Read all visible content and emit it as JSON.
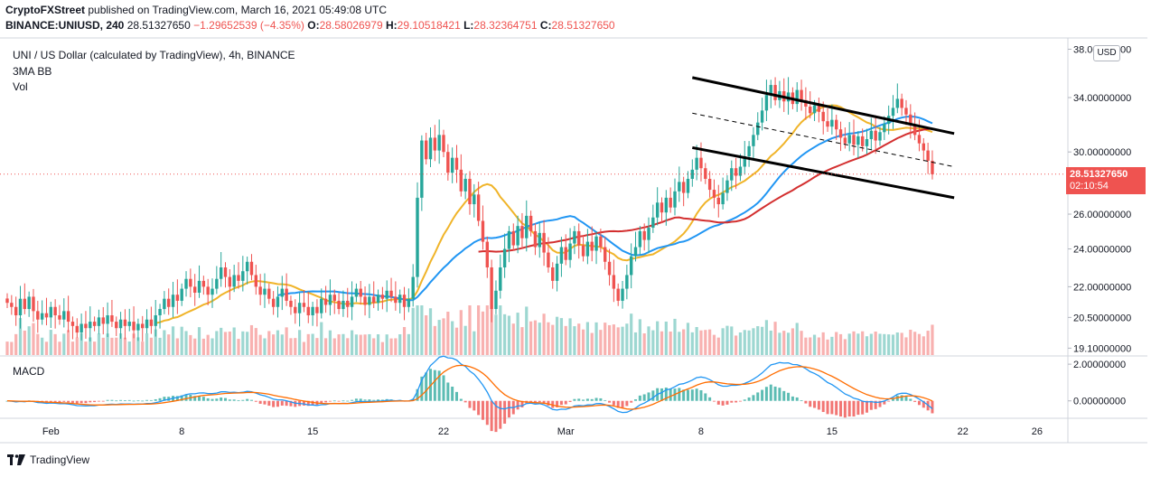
{
  "header": {
    "line1_publisher": "CryptoFXStreet",
    "line1_rest": " published on TradingView.com, March 16, 2021 05:49:08 UTC",
    "symbol_info": "BINANCE:UNIUSD, 240",
    "last_price": "28.51327650",
    "change": "−1.29652539 (−4.35%)",
    "o_label": "O:",
    "o_value": "28.58026979",
    "h_label": "H:",
    "h_value": "29.10518421",
    "l_label": "L:",
    "l_value": "28.32364751",
    "c_label": "C:",
    "c_value": "28.51327650"
  },
  "legend": {
    "title": "UNI / US Dollar (calculated by TradingView), 4h, BINANCE",
    "indicator": "3MA BB",
    "volume": "Vol",
    "macd": "MACD"
  },
  "currency_badge": "USD",
  "price_tag": {
    "price": "28.51327650",
    "countdown": "02:10:54"
  },
  "brand": "TradingView",
  "colors": {
    "up": "#26a69a",
    "down": "#ef5350",
    "ma50": "#f0b429",
    "ma100": "#2196f3",
    "ma200": "#d32f2f",
    "channel": "#000000",
    "macd": "#2196f3",
    "signal": "#ff6d00"
  },
  "chart_data": [
    {
      "type": "candlestick",
      "title": "UNI / US Dollar (calculated by TradingView), 4h, BINANCE",
      "x_tick_labels": [
        "Feb",
        "8",
        "15",
        "22",
        "Mar",
        "8",
        "15",
        "22",
        "26"
      ],
      "x_tick_index": [
        10,
        40,
        70,
        100,
        128,
        159,
        189,
        219,
        236
      ],
      "y_tick_labels": [
        "38.00000000",
        "34.00000000",
        "30.00000000",
        "26.00000000",
        "24.00000000",
        "22.00000000",
        "20.50000000",
        "19.10000000"
      ],
      "y_tick_values": [
        38,
        34,
        30,
        26,
        24,
        22,
        20.5,
        19.1
      ],
      "ylim": [
        18.8,
        39
      ],
      "scale": "log",
      "series": [
        {
          "name": "price",
          "kind": "candles",
          "close": [
            21.2,
            21.0,
            20.6,
            21.4,
            20.9,
            21.5,
            20.8,
            20.4,
            20.7,
            20.5,
            21.0,
            20.6,
            20.4,
            20.8,
            20.3,
            20.1,
            19.8,
            20.2,
            20.0,
            20.3,
            20.1,
            20.5,
            20.2,
            20.6,
            20.3,
            20.0,
            20.4,
            20.1,
            20.3,
            19.9,
            20.2,
            20.0,
            20.4,
            20.1,
            20.6,
            20.9,
            21.4,
            21.0,
            21.6,
            21.3,
            21.9,
            22.4,
            22.0,
            21.7,
            22.3,
            22.0,
            21.6,
            21.9,
            22.4,
            23.0,
            22.5,
            22.0,
            22.6,
            22.3,
            22.8,
            23.3,
            22.6,
            22.0,
            21.6,
            21.9,
            21.4,
            21.0,
            21.5,
            21.9,
            21.3,
            21.0,
            20.7,
            21.2,
            21.0,
            20.6,
            21.0,
            20.7,
            21.4,
            21.1,
            21.6,
            21.3,
            20.9,
            21.3,
            21.0,
            21.5,
            21.9,
            21.5,
            21.1,
            21.5,
            21.2,
            21.6,
            21.4,
            21.8,
            21.5,
            21.2,
            21.6,
            21.0,
            21.4,
            22.5,
            27.0,
            30.8,
            29.5,
            31.0,
            30.1,
            31.2,
            30.0,
            28.6,
            29.6,
            28.8,
            27.4,
            28.2,
            26.6,
            27.2,
            25.6,
            24.4,
            23.0,
            20.9,
            21.8,
            23.0,
            24.0,
            25.0,
            24.2,
            25.3,
            24.6,
            25.9,
            25.0,
            24.1,
            24.9,
            23.8,
            23.0,
            22.3,
            23.2,
            24.1,
            23.4,
            24.3,
            25.0,
            24.2,
            23.6,
            24.4,
            23.9,
            24.7,
            24.1,
            23.3,
            22.6,
            21.9,
            21.3,
            21.9,
            22.6,
            23.6,
            24.1,
            25.0,
            24.5,
            25.2,
            25.8,
            26.7,
            26.1,
            27.0,
            26.4,
            27.4,
            28.0,
            27.3,
            28.2,
            28.8,
            29.6,
            28.9,
            28.2,
            27.5,
            27.0,
            26.6,
            27.3,
            28.1,
            28.9,
            28.4,
            29.0,
            29.7,
            30.4,
            31.2,
            32.1,
            33.0,
            34.2,
            35.0,
            33.8,
            34.5,
            33.7,
            34.4,
            33.5,
            34.6,
            33.8,
            33.3,
            32.8,
            33.4,
            32.9,
            32.2,
            31.8,
            32.3,
            31.6,
            31.0,
            30.6,
            31.2,
            30.5,
            31.1,
            30.4,
            30.9,
            31.5,
            30.8,
            31.4,
            32.0,
            32.6,
            33.2,
            33.9,
            33.2,
            32.7,
            31.9,
            31.2,
            30.6,
            30.1,
            29.4,
            28.5
          ],
          "open_equals_prev_close": true
        }
      ],
      "overlays": [
        {
          "name": "MA50",
          "color": "#f0b429"
        },
        {
          "name": "MA100",
          "color": "#2196f3"
        },
        {
          "name": "MA200",
          "color": "#d32f2f"
        }
      ],
      "channel": {
        "upper": [
          [
            157,
            35.6
          ],
          [
            217,
            31.3
          ]
        ],
        "middle": [
          [
            157,
            32.8
          ],
          [
            217,
            29.0
          ]
        ],
        "lower": [
          [
            157,
            30.3
          ],
          [
            217,
            27.0
          ]
        ]
      },
      "current_price_line": 28.51
    },
    {
      "type": "bar",
      "name": "MACD",
      "y_tick_labels": [
        "2.00000000",
        "0.00000000"
      ],
      "y_tick_values": [
        2,
        0
      ],
      "ylim": [
        -0.9,
        2.4
      ]
    }
  ]
}
